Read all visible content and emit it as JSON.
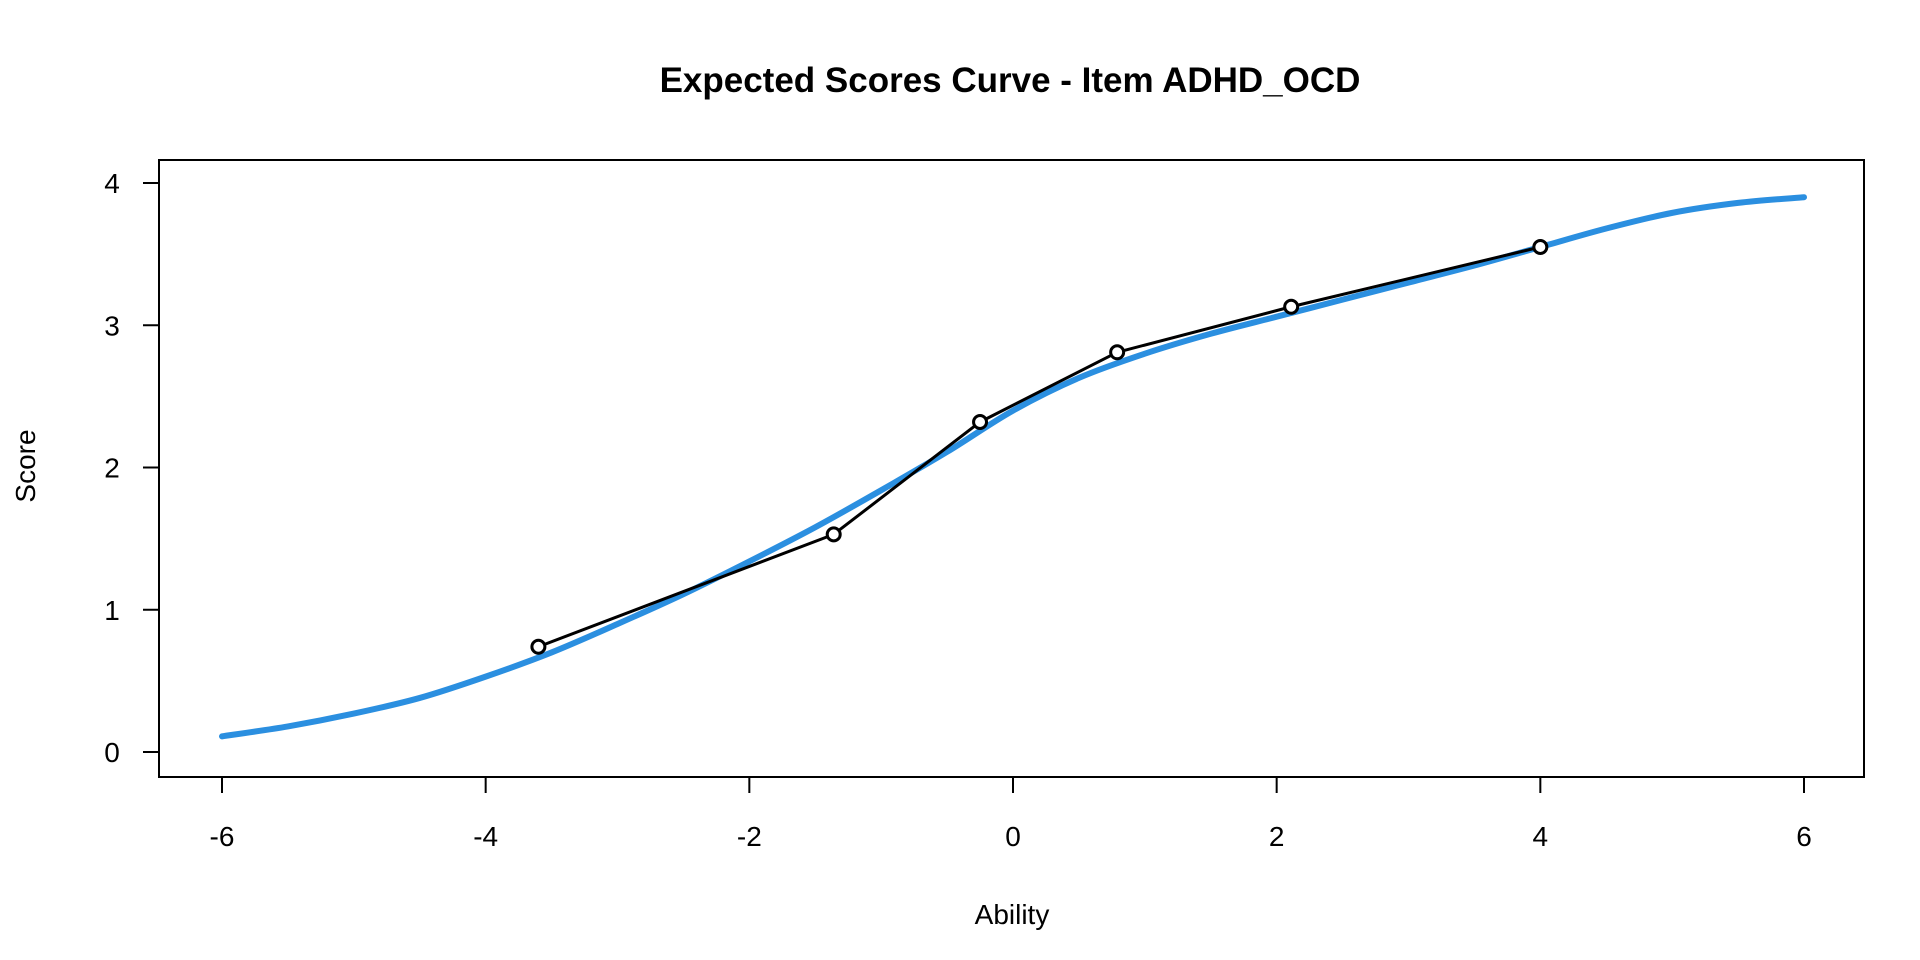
{
  "chart_data": {
    "type": "line",
    "title": "Expected Scores Curve - Item  ADHD_OCD",
    "xlabel": "Ability",
    "ylabel": "Score",
    "xlim": [
      -6,
      6
    ],
    "ylim": [
      0,
      4
    ],
    "xticks": [
      "-6",
      "-4",
      "-2",
      "0",
      "2",
      "4",
      "6"
    ],
    "yticks": [
      "0",
      "1",
      "2",
      "3",
      "4"
    ],
    "grid": false,
    "legend": "none",
    "series": [
      {
        "style": "smooth-curve",
        "color": "#2b8fe0",
        "x": [
          -6,
          -5.5,
          -5,
          -4.5,
          -4,
          -3.5,
          -3,
          -2.5,
          -2,
          -1.5,
          -1,
          -0.5,
          0,
          0.5,
          1,
          1.5,
          2,
          2.5,
          3,
          3.5,
          4,
          4.5,
          5,
          5.5,
          6
        ],
        "y": [
          0.11,
          0.18,
          0.27,
          0.38,
          0.53,
          0.7,
          0.9,
          1.11,
          1.34,
          1.58,
          1.84,
          2.11,
          2.4,
          2.63,
          2.8,
          2.94,
          3.06,
          3.18,
          3.3,
          3.42,
          3.55,
          3.68,
          3.79,
          3.86,
          3.9
        ]
      },
      {
        "style": "line-with-points",
        "color": "#000000",
        "x": [
          -3.6,
          -1.36,
          -0.25,
          0.79,
          2.11,
          4.0
        ],
        "y": [
          0.74,
          1.53,
          2.32,
          2.81,
          3.13,
          3.55
        ]
      }
    ]
  }
}
